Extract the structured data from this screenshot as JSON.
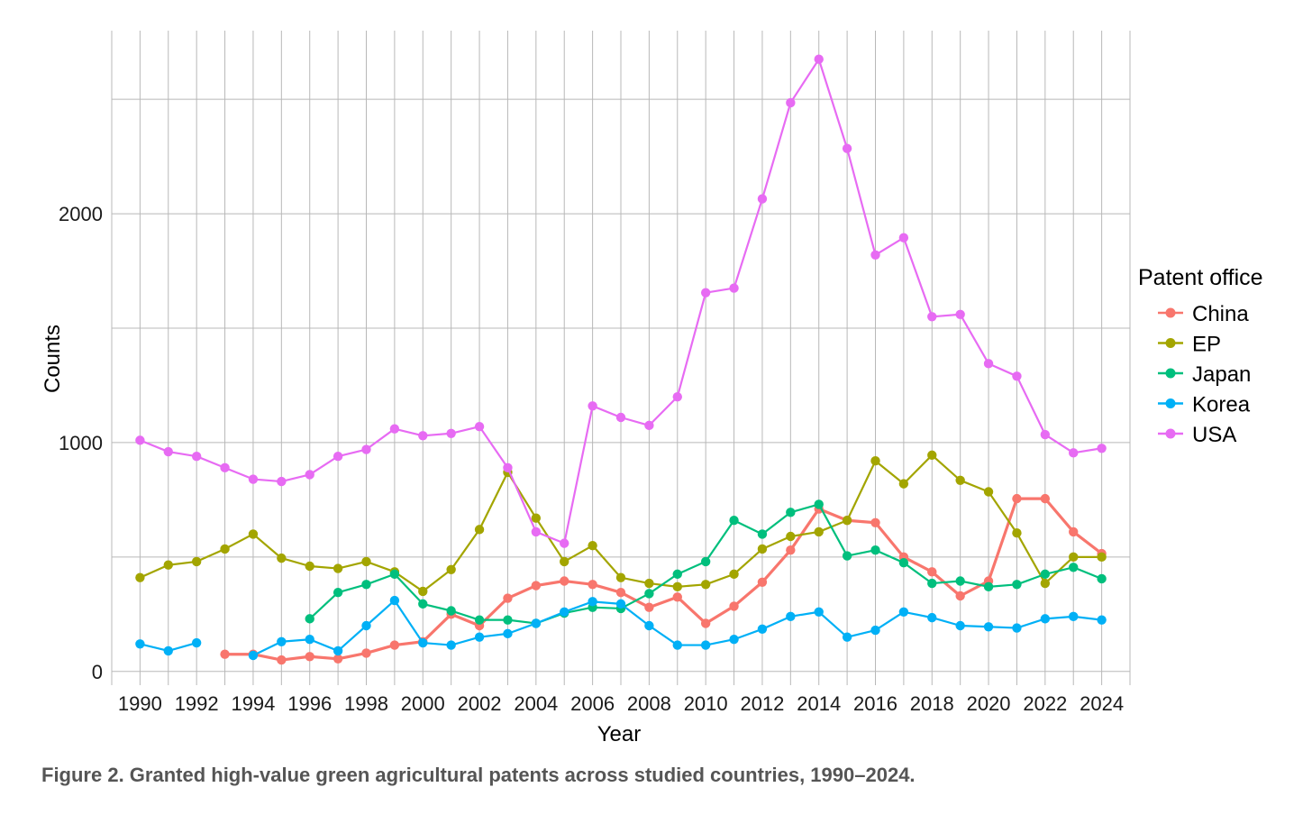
{
  "chart_data": {
    "type": "line",
    "title": "",
    "xlabel": "Year",
    "ylabel": "Counts",
    "x": [
      1990,
      1991,
      1992,
      1993,
      1994,
      1995,
      1996,
      1997,
      1998,
      1999,
      2000,
      2001,
      2002,
      2003,
      2004,
      2005,
      2006,
      2007,
      2008,
      2009,
      2010,
      2011,
      2012,
      2013,
      2014,
      2015,
      2016,
      2017,
      2018,
      2019,
      2020,
      2021,
      2022,
      2023,
      2024
    ],
    "x_ticks": [
      "1990",
      "1992",
      "1994",
      "1996",
      "1998",
      "2000",
      "2002",
      "2004",
      "2006",
      "2008",
      "2010",
      "2012",
      "2014",
      "2016",
      "2018",
      "2020",
      "2022",
      "2024"
    ],
    "y_ticks": [
      "0",
      "1000",
      "2000"
    ],
    "xlim": [
      1989,
      2025
    ],
    "ylim": [
      -60,
      2800
    ],
    "grid": true,
    "legend_title": "Patent office",
    "legend_position": "right",
    "series": [
      {
        "name": "China",
        "color": "#F8766D",
        "values": [
          null,
          null,
          null,
          75,
          75,
          50,
          65,
          55,
          80,
          115,
          130,
          250,
          200,
          320,
          375,
          395,
          380,
          345,
          280,
          325,
          210,
          285,
          390,
          530,
          710,
          660,
          650,
          500,
          435,
          330,
          395,
          755,
          755,
          610,
          515
        ]
      },
      {
        "name": "EP",
        "color": "#A3A500",
        "values": [
          410,
          465,
          480,
          535,
          600,
          495,
          460,
          450,
          480,
          435,
          350,
          445,
          620,
          870,
          670,
          480,
          550,
          410,
          385,
          370,
          380,
          425,
          535,
          590,
          610,
          660,
          920,
          820,
          945,
          835,
          785,
          605,
          385,
          500,
          500
        ]
      },
      {
        "name": "Japan",
        "color": "#00BF7D",
        "values": [
          null,
          null,
          null,
          null,
          null,
          null,
          230,
          345,
          380,
          425,
          295,
          265,
          225,
          225,
          210,
          255,
          280,
          275,
          340,
          425,
          480,
          660,
          600,
          695,
          730,
          505,
          530,
          475,
          385,
          395,
          370,
          380,
          425,
          455,
          405
        ]
      },
      {
        "name": "Korea",
        "color": "#00B0F6",
        "values": [
          120,
          90,
          125,
          null,
          70,
          130,
          140,
          90,
          200,
          310,
          125,
          115,
          150,
          165,
          210,
          260,
          305,
          295,
          200,
          115,
          115,
          140,
          185,
          240,
          260,
          150,
          180,
          260,
          235,
          200,
          195,
          190,
          230,
          240,
          225
        ]
      },
      {
        "name": "USA",
        "color": "#E76BF3",
        "values": [
          1010,
          960,
          940,
          890,
          840,
          830,
          860,
          940,
          970,
          1060,
          1030,
          1040,
          1070,
          890,
          610,
          560,
          1160,
          1110,
          1075,
          1200,
          1655,
          1675,
          2065,
          2485,
          2675,
          2285,
          1820,
          1895,
          1550,
          1560,
          1345,
          1290,
          1035,
          955,
          975
        ]
      }
    ]
  },
  "caption": "Figure 2. Granted high-value green agricultural patents across studied countries, 1990–2024."
}
